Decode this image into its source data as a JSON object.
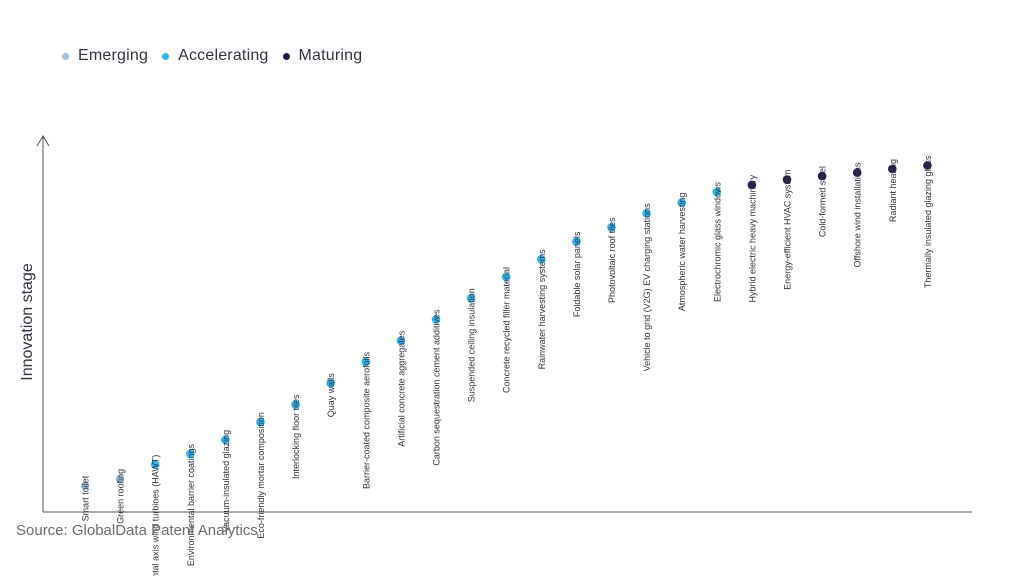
{
  "chart_data": {
    "type": "scatter",
    "ylabel": "Innovation stage",
    "xlabel": "",
    "legend_position": "top-left",
    "series": [
      {
        "name": "Emerging",
        "color": "#9dc3dc"
      },
      {
        "name": "Accelerating",
        "color": "#29b8f0"
      },
      {
        "name": "Maturing",
        "color": "#2a1e49"
      }
    ],
    "points": [
      {
        "label": "Smart toilet",
        "stage": "Emerging",
        "y": 4
      },
      {
        "label": "Green roofing",
        "stage": "Emerging",
        "y": 6
      },
      {
        "label": "Horizontal axis wind turbines (HAWT)",
        "stage": "Accelerating",
        "y": 10
      },
      {
        "label": "Environmental barrier coatings",
        "stage": "Accelerating",
        "y": 13
      },
      {
        "label": "Vacuum-insulated glazing",
        "stage": "Accelerating",
        "y": 17
      },
      {
        "label": "Eco-friendly mortar composition",
        "stage": "Accelerating",
        "y": 22
      },
      {
        "label": "Interlocking floor tiles",
        "stage": "Accelerating",
        "y": 27
      },
      {
        "label": "Quay walls",
        "stage": "Accelerating",
        "y": 33
      },
      {
        "label": "Barrier-coated composite aerofoils",
        "stage": "Accelerating",
        "y": 39
      },
      {
        "label": "Artificial concrete aggregates",
        "stage": "Accelerating",
        "y": 45
      },
      {
        "label": "Carbon sequestration cement additives",
        "stage": "Accelerating",
        "y": 51
      },
      {
        "label": "Suspended ceiling insulation",
        "stage": "Accelerating",
        "y": 57
      },
      {
        "label": "Concrete recycled filler material",
        "stage": "Accelerating",
        "y": 63
      },
      {
        "label": "Rainwater harvesting systems",
        "stage": "Accelerating",
        "y": 68
      },
      {
        "label": "Foldable solar panels",
        "stage": "Accelerating",
        "y": 73
      },
      {
        "label": "Photovoltaic roof tiles",
        "stage": "Accelerating",
        "y": 77
      },
      {
        "label": "Vehicle to grid (V2G) EV charging stations",
        "stage": "Accelerating",
        "y": 81
      },
      {
        "label": "Atmospheric water harvesting",
        "stage": "Accelerating",
        "y": 84
      },
      {
        "label": "Electrochromic glass windows",
        "stage": "Accelerating",
        "y": 87
      },
      {
        "label": "Hybrid electric heavy machinery",
        "stage": "Maturing",
        "y": 89
      },
      {
        "label": "Energy-efficient HVAC system",
        "stage": "Maturing",
        "y": 90.5
      },
      {
        "label": "Cold-formed steel",
        "stage": "Maturing",
        "y": 91.5
      },
      {
        "label": "Offshore wind installations",
        "stage": "Maturing",
        "y": 92.5
      },
      {
        "label": "Radiant heating",
        "stage": "Maturing",
        "y": 93.5
      },
      {
        "label": "Thermally insulated glazing glass",
        "stage": "Maturing",
        "y": 94.5
      }
    ],
    "ylim": [
      0,
      100
    ],
    "grid": false
  },
  "source": "Source: GlobalData Patent Analytics"
}
